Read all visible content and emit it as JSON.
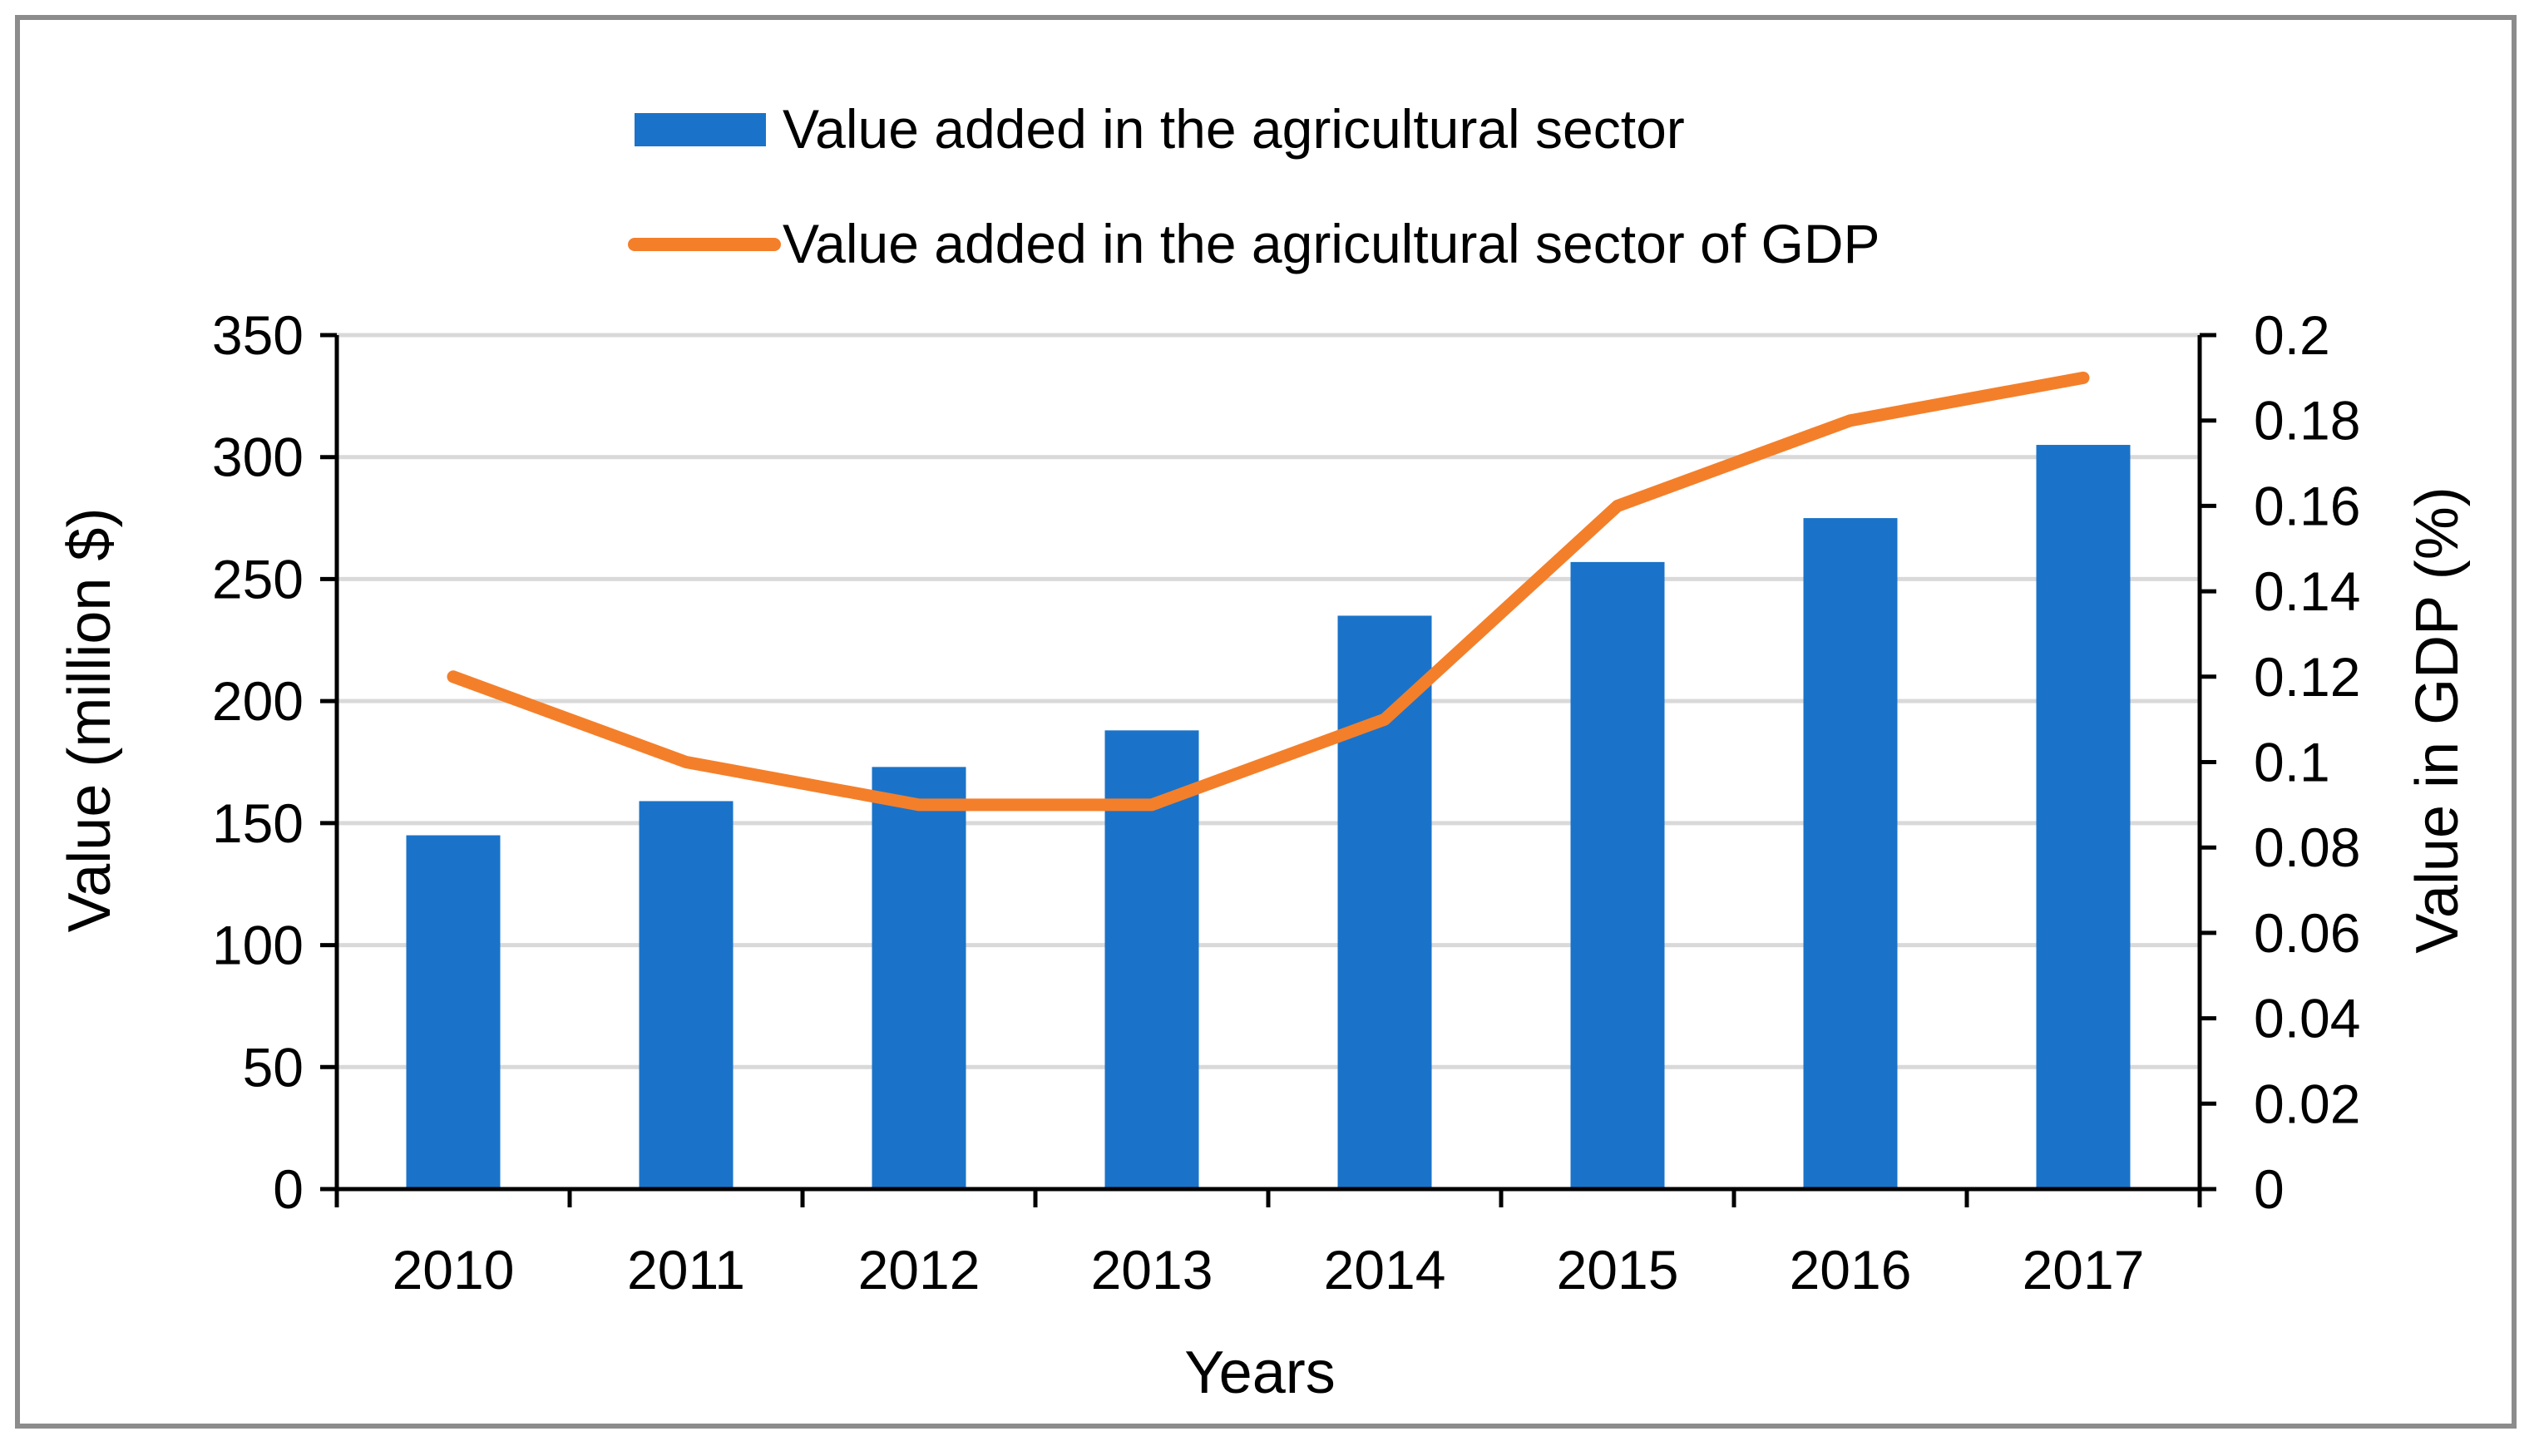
{
  "chart_data": {
    "type": "bar",
    "categories": [
      "2010",
      "2011",
      "2012",
      "2013",
      "2014",
      "2015",
      "2016",
      "2017"
    ],
    "xlabel": "Years",
    "ylabel": "Value (million $)",
    "y2label": "Value in GDP  (%)",
    "ylim": [
      0,
      350
    ],
    "y2lim": [
      0,
      0.2
    ],
    "yticks": [
      "0",
      "50",
      "100",
      "150",
      "200",
      "250",
      "300",
      "350"
    ],
    "y2ticks": [
      "0",
      "0.02",
      "0.04",
      "0.06",
      "0.08",
      "0.1",
      "0.12",
      "0.14",
      "0.16",
      "0.18",
      "0.2"
    ],
    "grid": true,
    "legend_position": "top",
    "series": [
      {
        "name": "Value added in the agricultural sector",
        "type": "bar",
        "axis": "left",
        "color": "#1a73c9",
        "values": [
          145,
          159,
          173,
          188,
          235,
          257,
          275,
          305
        ]
      },
      {
        "name": "Value added in the agricultural sector of GDP",
        "type": "line",
        "axis": "right",
        "color": "#f47f2a",
        "values": [
          0.12,
          0.1,
          0.09,
          0.09,
          0.11,
          0.16,
          0.18,
          0.19
        ]
      }
    ]
  }
}
